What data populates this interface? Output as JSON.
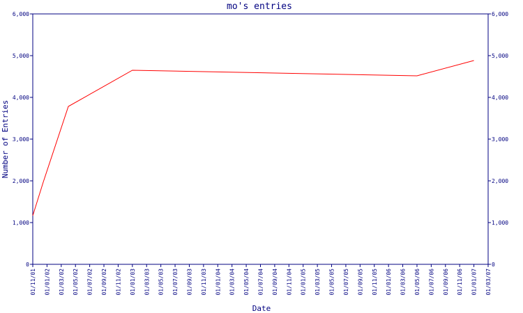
{
  "chart_data": {
    "type": "line",
    "title": "mo's entries",
    "x_label": "Date",
    "y_label": "Number of Entries",
    "x": [
      "01/11/01",
      "15/12/01",
      "01/04/02",
      "01/01/03",
      "01/05/06",
      "01/01/07"
    ],
    "series": [
      {
        "name": "entries",
        "color": "#ff0000",
        "values": [
          1167,
          1967,
          3783,
          4650,
          4517,
          4883
        ]
      }
    ],
    "xlim": [
      "01/11/01",
      "01/03/07"
    ],
    "xticks": [
      "01/11/01",
      "01/01/02",
      "01/03/02",
      "01/05/02",
      "01/07/02",
      "01/09/02",
      "01/11/02",
      "01/01/03",
      "01/03/03",
      "01/05/03",
      "01/07/03",
      "01/09/03",
      "01/11/03",
      "01/01/04",
      "01/03/04",
      "01/05/04",
      "01/07/04",
      "01/09/04",
      "01/11/04",
      "01/01/05",
      "01/03/05",
      "01/05/05",
      "01/07/05",
      "01/09/05",
      "01/11/05",
      "01/01/06",
      "01/03/06",
      "01/05/06",
      "01/07/06",
      "01/09/06",
      "01/11/06",
      "01/01/07",
      "01/03/07"
    ],
    "ylim": [
      0,
      6000
    ],
    "yticks": [
      0,
      {
        "value": 1000,
        "label": "1,000"
      },
      {
        "value": 2000,
        "label": "2,000"
      },
      {
        "value": 3000,
        "label": "3,000"
      },
      {
        "value": 4000,
        "label": "4,000"
      },
      {
        "value": 5000,
        "label": "5,000"
      },
      {
        "value": 6000,
        "label": "6,000"
      }
    ],
    "axis_color": "#000080"
  }
}
